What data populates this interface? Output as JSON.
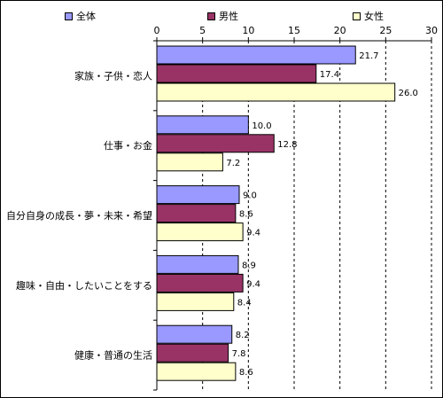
{
  "chart_data": {
    "type": "bar",
    "orientation": "horizontal",
    "categories": [
      "家族・子供・恋人",
      "仕事・お金",
      "自分自身の成長・夢・未来・希望",
      "趣味・自由・したいことをする",
      "健康・普通の生活"
    ],
    "series": [
      {
        "name": "全体",
        "color": "#9999ff",
        "values": [
          21.7,
          10.0,
          9.0,
          8.9,
          8.2
        ],
        "labels": [
          "21.7",
          "10.0",
          "9.0",
          "8.9",
          "8.2"
        ]
      },
      {
        "name": "男性",
        "color": "#993366",
        "values": [
          17.4,
          12.8,
          8.6,
          9.4,
          7.8
        ],
        "labels": [
          "17.4",
          "12.8",
          "8.6",
          "9.4",
          "7.8"
        ]
      },
      {
        "name": "女性",
        "color": "#ffffcc",
        "values": [
          26.0,
          7.2,
          9.4,
          8.4,
          8.6
        ],
        "labels": [
          "26.0",
          "7.2",
          "9.4",
          "8.4",
          "8.6"
        ]
      }
    ],
    "xlim": [
      0,
      30
    ],
    "xticks": [
      "0",
      "5",
      "10",
      "15",
      "20",
      "25",
      "30"
    ],
    "xtick_values": [
      0,
      5,
      10,
      15,
      20,
      25,
      30
    ],
    "axis_position": "top",
    "grid": "vertical dashed",
    "legend_position": "top"
  }
}
